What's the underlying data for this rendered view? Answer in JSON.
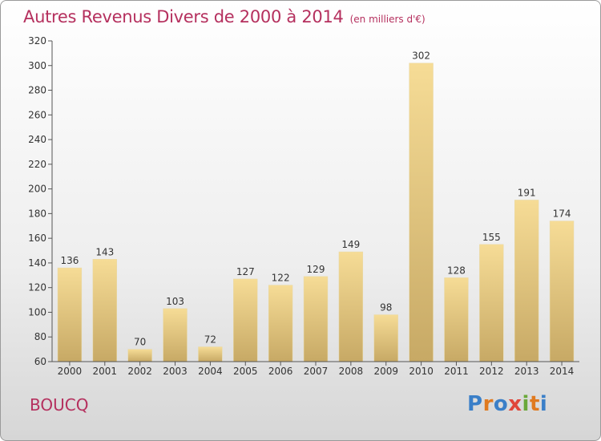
{
  "page": {
    "title": "Autres Revenus Divers de 2000 à 2014",
    "unit_note": "(en milliers d'€)",
    "commune": "BOUCQ",
    "logo_text": "Proxiti"
  },
  "chart_data": {
    "type": "bar",
    "title": "Autres Revenus Divers de 2000 à 2014",
    "subtitle": "(en milliers d'€)",
    "xlabel": "",
    "ylabel": "",
    "categories": [
      "2000",
      "2001",
      "2002",
      "2003",
      "2004",
      "2005",
      "2006",
      "2007",
      "2008",
      "2009",
      "2010",
      "2011",
      "2012",
      "2013",
      "2014"
    ],
    "values": [
      136,
      143,
      70,
      103,
      72,
      127,
      122,
      129,
      149,
      98,
      302,
      128,
      155,
      191,
      174
    ],
    "ylim": [
      60,
      320
    ],
    "yticks": [
      60,
      80,
      100,
      120,
      140,
      160,
      180,
      200,
      220,
      240,
      260,
      280,
      300,
      320
    ],
    "grid": false,
    "legend": "none",
    "data_labels": true,
    "colors": {
      "bar_light": "#f6dc96",
      "bar_dark": "#c7a965",
      "axis": "#555555",
      "label": "#333333"
    }
  }
}
